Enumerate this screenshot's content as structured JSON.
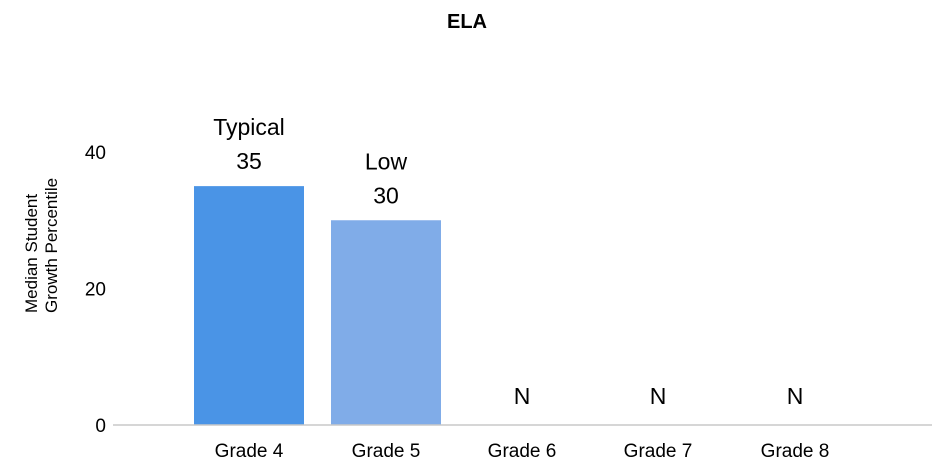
{
  "chart_data": {
    "type": "bar",
    "title": "ELA",
    "ylabel_lines": [
      "Median Student",
      "Growth Percentile"
    ],
    "xlabel": "",
    "ylim": [
      0,
      40
    ],
    "yticks": [
      "0",
      "20",
      "40"
    ],
    "categories": [
      "Grade 4",
      "Grade 5",
      "Grade 6",
      "Grade 7",
      "Grade 8"
    ],
    "values": [
      35,
      30,
      null,
      null,
      null
    ],
    "bar_labels": [
      "Typical",
      "Low",
      "",
      "",
      ""
    ],
    "value_labels": [
      "35",
      "30",
      "N",
      "N",
      "N"
    ],
    "colors": [
      "#4a94e6",
      "#80ace8",
      null,
      null,
      null
    ],
    "axis_color": "#c8c8c8"
  }
}
